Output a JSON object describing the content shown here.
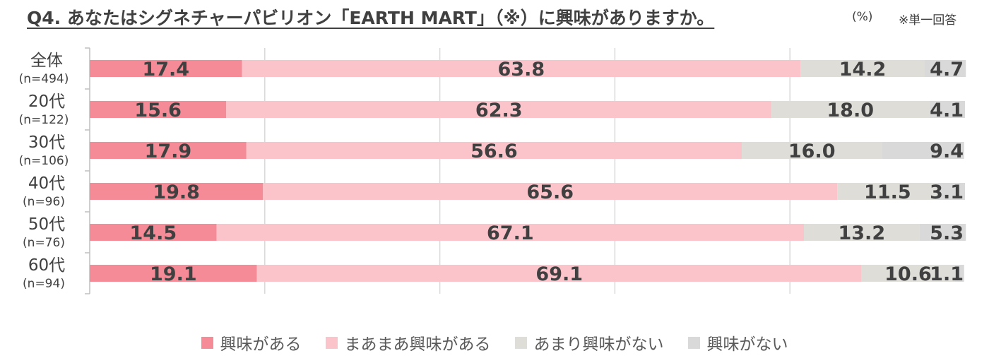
{
  "title": "Q4. あなたはシグネチャーパビリオン「EARTH MART」（※）に興味がありますか。",
  "unit_label": "(%)",
  "note": "※単一回答",
  "chart_data": {
    "type": "bar",
    "orientation": "horizontal",
    "stacked": true,
    "xlim": [
      0,
      100
    ],
    "grid": true,
    "legend_position": "bottom",
    "categories": [
      "全体",
      "20代",
      "30代",
      "40代",
      "50代",
      "60代"
    ],
    "sample_sizes": [
      "(n=494)",
      "(n=122)",
      "(n=106)",
      "(n=96)",
      "(n=76)",
      "(n=94)"
    ],
    "series": [
      {
        "name": "興味がある",
        "color": "#f48b96",
        "values": [
          17.4,
          15.6,
          17.9,
          19.8,
          14.5,
          19.1
        ]
      },
      {
        "name": "まあまあ興味がある",
        "color": "#fbc4cb",
        "values": [
          63.8,
          62.3,
          56.6,
          65.6,
          67.1,
          69.1
        ]
      },
      {
        "name": "あまり興味がない",
        "color": "#deddd7",
        "values": [
          14.2,
          18.0,
          16.0,
          11.5,
          13.2,
          10.6
        ]
      },
      {
        "name": "興味がない",
        "color": "#d9d9d9",
        "values": [
          4.7,
          4.1,
          9.4,
          3.1,
          5.3,
          1.1
        ]
      }
    ]
  }
}
